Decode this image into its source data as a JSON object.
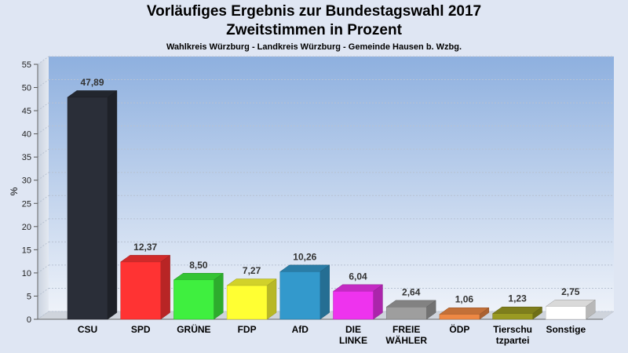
{
  "header": {
    "title": "Vorläufiges Ergebnis zur Bundestagswahl 2017",
    "subtitle": "Zweitstimmen in Prozent",
    "region": "Wahlkreis Würzburg - Landkreis Würzburg - Gemeinde Hausen b. Wzbg."
  },
  "chart_data": {
    "type": "bar",
    "title": "Vorläufiges Ergebnis zur Bundestagswahl 2017",
    "subtitle": "Zweitstimmen in Prozent",
    "ylabel": "%",
    "xlabel": "",
    "ylim": [
      0,
      55
    ],
    "yticks": [
      0,
      5,
      10,
      15,
      20,
      25,
      30,
      35,
      40,
      45,
      50,
      55
    ],
    "grid": true,
    "categories": [
      [
        "CSU"
      ],
      [
        "SPD"
      ],
      [
        "GRÜNE"
      ],
      [
        "FDP"
      ],
      [
        "AfD"
      ],
      [
        "DIE",
        "LINKE"
      ],
      [
        "FREIE",
        "WÄHLER"
      ],
      [
        "ÖDP"
      ],
      [
        "Tierschu",
        "tzpartei"
      ],
      [
        "Sonstige"
      ]
    ],
    "values": [
      47.89,
      12.37,
      8.5,
      7.27,
      10.26,
      6.04,
      2.64,
      1.06,
      1.23,
      2.75
    ],
    "value_labels": [
      "47,89",
      "12,37",
      "8,50",
      "7,27",
      "10,26",
      "6,04",
      "2,64",
      "1,06",
      "1,23",
      "2,75"
    ],
    "colors": [
      "#2a2e38",
      "#ff3333",
      "#3fef3f",
      "#ffff33",
      "#3399cc",
      "#ee33ee",
      "#9e9e9e",
      "#ee8844",
      "#9a9a22",
      "#ffffff"
    ]
  }
}
